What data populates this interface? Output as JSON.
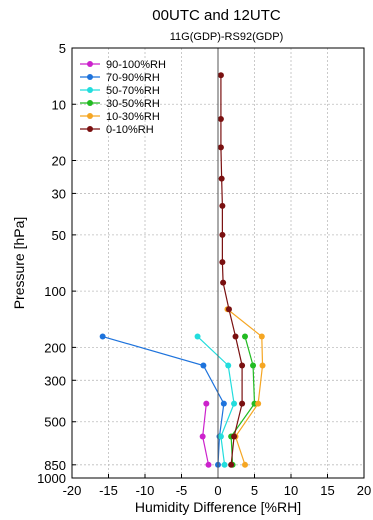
{
  "chart_data": {
    "type": "line",
    "title": "00UTC and 12UTC",
    "subtitle": "11G(GDP)-RS92(GDP)",
    "xlabel": "Humidity Difference [%RH]",
    "ylabel": "Pressure [hPa]",
    "xlim": [
      -20,
      20
    ],
    "ylim": [
      1000,
      5
    ],
    "yscale": "log",
    "grid": true,
    "legend_position": "upper-left",
    "x_ticks": [
      -20,
      -15,
      -10,
      -5,
      0,
      5,
      10,
      15,
      20
    ],
    "y_ticks": [
      5,
      10,
      20,
      30,
      50,
      100,
      200,
      300,
      500,
      850,
      1000
    ],
    "series": [
      {
        "name": "90-100%RH",
        "color": "#cc22cc",
        "points": [
          [
            -1.6,
            400
          ],
          [
            -2.1,
            600
          ],
          [
            -1.3,
            850
          ]
        ]
      },
      {
        "name": "70-90%RH",
        "color": "#1e73dc",
        "points": [
          [
            -15.8,
            175
          ],
          [
            -2.0,
            250
          ],
          [
            0.8,
            400
          ],
          [
            0.2,
            600
          ],
          [
            0.0,
            850
          ]
        ]
      },
      {
        "name": "50-70%RH",
        "color": "#22dddd",
        "points": [
          [
            -2.8,
            175
          ],
          [
            1.4,
            250
          ],
          [
            2.2,
            400
          ],
          [
            0.4,
            600
          ],
          [
            0.9,
            850
          ]
        ]
      },
      {
        "name": "30-50%RH",
        "color": "#22bb22",
        "points": [
          [
            3.7,
            175
          ],
          [
            4.8,
            250
          ],
          [
            5.0,
            400
          ],
          [
            1.8,
            600
          ],
          [
            2.0,
            850
          ]
        ]
      },
      {
        "name": "10-30%RH",
        "color": "#f5a623",
        "points": [
          [
            1.3,
            125
          ],
          [
            6.0,
            175
          ],
          [
            6.1,
            250
          ],
          [
            5.5,
            400
          ],
          [
            2.4,
            600
          ],
          [
            3.7,
            850
          ]
        ]
      },
      {
        "name": "0-10%RH",
        "color": "#7a1010",
        "points": [
          [
            0.4,
            7
          ],
          [
            0.4,
            12
          ],
          [
            0.4,
            17
          ],
          [
            0.5,
            25
          ],
          [
            0.6,
            35
          ],
          [
            0.6,
            50
          ],
          [
            0.6,
            70
          ],
          [
            0.7,
            90
          ],
          [
            1.5,
            125
          ],
          [
            2.4,
            175
          ],
          [
            3.3,
            250
          ],
          [
            3.3,
            400
          ],
          [
            2.2,
            600
          ],
          [
            1.8,
            850
          ]
        ]
      }
    ]
  }
}
